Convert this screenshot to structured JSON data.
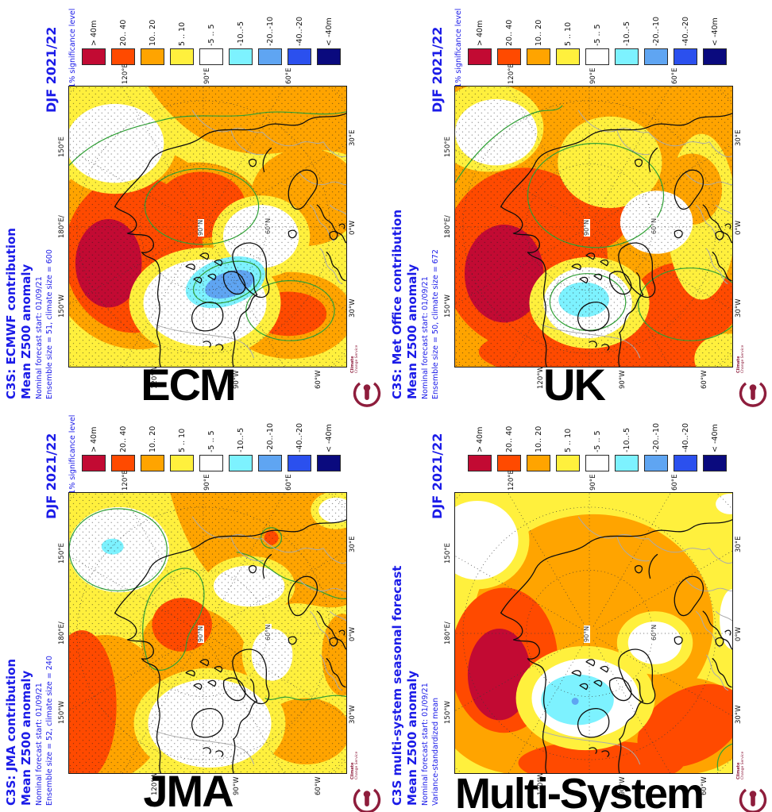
{
  "colors": {
    "text_blue": "#1B1BE8",
    "contour_green": "#2FA135",
    "logo_maroon": "#8E1D3C"
  },
  "legend": {
    "labels": [
      "> 40m",
      "20.. 40",
      "10.. 20",
      "5 .. 10",
      "-5 .. 5",
      "-10..-5",
      "-20..-10",
      "-40..-20",
      "< -40m"
    ],
    "colors": [
      "#C20A33",
      "#FF4A00",
      "#FFA400",
      "#FFF03D",
      "#FFFFFF",
      "#7DF2FF",
      "#5FA5F2",
      "#2B50EE",
      "#0A0A7E"
    ]
  },
  "axis": {
    "top": [
      "120°E",
      "90°E",
      "60°E"
    ],
    "left": [
      "150°E",
      "180°E/",
      "150°W"
    ],
    "right": [
      "30°E",
      "0°W",
      "30°W"
    ],
    "bottom": [
      "120°W",
      "90°W",
      "60°W"
    ],
    "pole": "90°N",
    "lat": "60°N"
  },
  "logo": {
    "line1": "Climate",
    "line2": "Change Service"
  },
  "panels": [
    {
      "title": "ECM",
      "period": "DJF 2021/22",
      "contour_note": "Solid contour at 1% significance level",
      "header1": "C3S: ECMWF contribution",
      "header2": "Mean Z500 anomaly",
      "sub1": "Nominal forecast start: 01/09/21",
      "sub2": "Ensemble size = 51, climate size = 600"
    },
    {
      "title": "UK",
      "period": "DJF 2021/22",
      "contour_note": "Solid contour at 1% significance level",
      "header1": "C3S: Met Office contribution",
      "header2": "Mean Z500 anomaly",
      "sub1": "Nominal forecast start: 01/09/21",
      "sub2": "Ensemble size = 50, climate size = 672"
    },
    {
      "title": "JMA",
      "period": "DJF 2021/22",
      "contour_note": "Solid contour at 1% significance level",
      "header1": "C3S: JMA contribution",
      "header2": "Mean Z500 anomaly",
      "sub1": "Nominal forecast start: 01/09/21",
      "sub2": "Ensemble size = 52, climate size = 240"
    },
    {
      "title": "Multi-System",
      "period": "DJF 2021/22",
      "contour_note": "",
      "header1": "C3S multi-system seasonal forecast",
      "header2": "Mean Z500 anomaly",
      "sub1": "Nominal forecast start: 01/09/21",
      "sub2": "Variance-standardized mean"
    }
  ]
}
